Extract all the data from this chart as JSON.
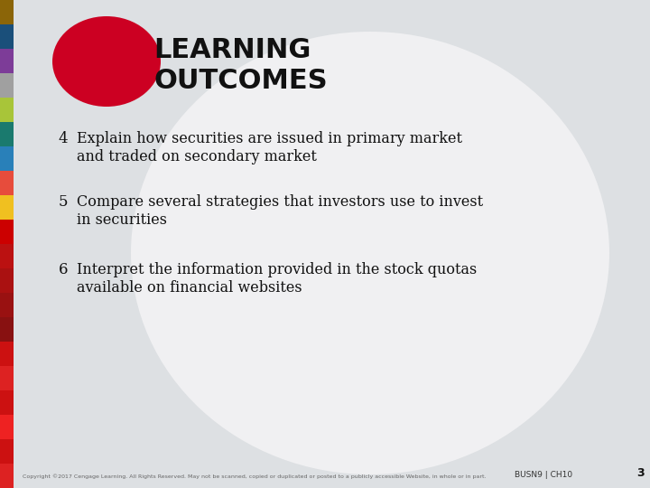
{
  "bg_color": "#dde0e3",
  "title_line1": "LEARNING",
  "title_line2": "OUTCOMES",
  "title_color": "#ffffff",
  "title_bg_color": "#cc0022",
  "oval_color": "#ffffff",
  "items": [
    {
      "number": "4",
      "text": "Explain how securities are issued in primary market\nand traded on secondary market"
    },
    {
      "number": "5",
      "text": "Compare several strategies that investors use to invest\nin securities"
    },
    {
      "number": "6",
      "text": "Interpret the information provided in the stock quotas\navailable on financial websites"
    }
  ],
  "footer_text": "Copyright ©2017 Cengage Learning. All Rights Reserved. May not be scanned, copied or duplicated or posted to a publicly accessible Website, in whole or in part.",
  "footer_right": "BUSN9 | CH10",
  "page_number": "3",
  "left_bar_colors": [
    "#8B6508",
    "#1a4f7a",
    "#7d3c98",
    "#a0a0a0",
    "#a8c539",
    "#1a7a6e",
    "#2980b9",
    "#e74c3c",
    "#f0c020",
    "#cc0000",
    "#bb1111",
    "#aa1111",
    "#991111",
    "#881111",
    "#cc1111",
    "#dd2222",
    "#cc1111",
    "#ee2222",
    "#cc1111",
    "#dd2222"
  ],
  "text_color": "#111111",
  "item_fontsize": 11.5,
  "title_fontsize": 22,
  "number_fontsize": 12
}
